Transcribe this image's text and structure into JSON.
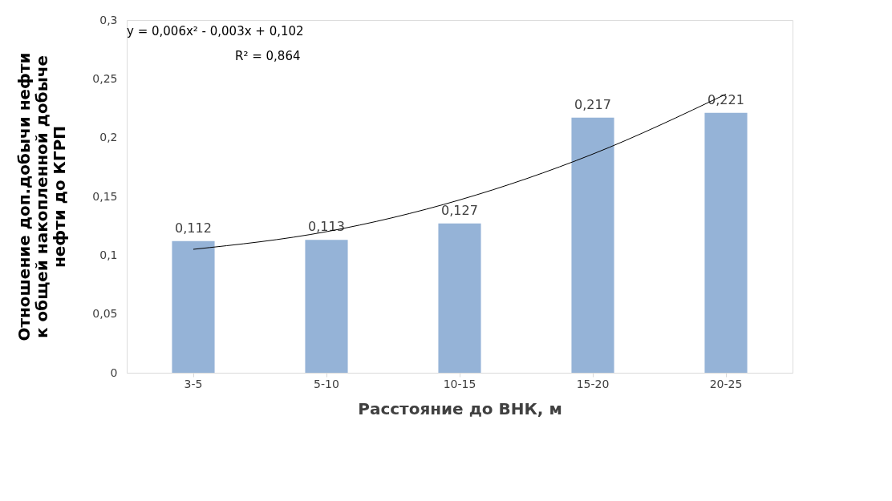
{
  "chart_data": {
    "type": "bar",
    "xlabel": "Расстояние до ВНК, м",
    "ylabel": "Отношение доп.добычи нефти\nк общей накопленной добыче\nнефти до КГРП",
    "categories": [
      "3-5",
      "5-10",
      "10-15",
      "15-20",
      "20-25"
    ],
    "series": [
      {
        "color": "#95b3d7",
        "values": [
          0.112,
          0.113,
          0.127,
          0.217,
          0.221
        ],
        "value_labels": [
          "0,112",
          "0,113",
          "0,127",
          "0,217",
          "0,221"
        ]
      },
      {
        "type": "line",
        "color": "#000000",
        "x": [
          "3-5",
          "5-10",
          "10-15",
          "15-20",
          "20-25"
        ],
        "values": [
          0.105,
          0.12,
          0.147,
          0.186,
          0.237
        ]
      }
    ],
    "ylim": [
      0,
      0.3
    ],
    "yticks": [
      0,
      {
        "value": 0.05,
        "label": "0,05"
      },
      {
        "value": 0.1,
        "label": "0,1"
      },
      {
        "value": 0.15,
        "label": "0,15"
      },
      {
        "value": 0.2,
        "label": "0,2"
      },
      {
        "value": 0.25,
        "label": "0,25"
      },
      {
        "value": 0.3,
        "label": "0,3"
      }
    ],
    "annotations": [
      "y = 0,006x² - 0,003x + 0,102",
      "R² = 0,864"
    ],
    "grid": false
  }
}
